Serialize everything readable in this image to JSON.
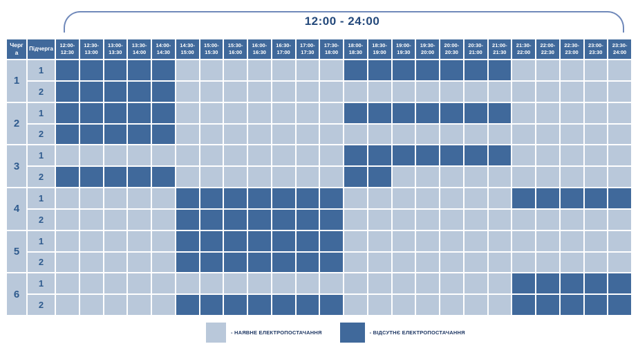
{
  "title": "12:00 - 24:00",
  "colors": {
    "power_on_cell": "#b9c8da",
    "power_off_cell": "#40699b",
    "header_bg": "#40699b",
    "header_text": "#ffffff",
    "row_label_text": "#2f5b8e",
    "title_text": "#24497b",
    "brace_line": "#7089ba",
    "legend_text": "#1f3864"
  },
  "table": {
    "queue_header": "Черга",
    "subqueue_header": "Підчерга",
    "time_slots": [
      "12:00-12:30",
      "12:30-13:00",
      "13:00-13:30",
      "13:30-14:00",
      "14:00-14:30",
      "14:30-15:00",
      "15:00-15:30",
      "15:30-16:00",
      "16:00-16:30",
      "16:30-17:00",
      "17:00-17:30",
      "17:30-18:00",
      "18:00-18:30",
      "18:30-19:00",
      "19:00-19:30",
      "19:30-20:00",
      "20:00-20:30",
      "20:30-21:00",
      "21:00-21:30",
      "21:30-22:00",
      "22:00-22:30",
      "22:30-23:00",
      "23:00-23:30",
      "23:30-24:00"
    ],
    "rows": [
      {
        "queue": "1",
        "sub": "1"
      },
      {
        "queue": "1",
        "sub": "2"
      },
      {
        "queue": "2",
        "sub": "1"
      },
      {
        "queue": "2",
        "sub": "2"
      },
      {
        "queue": "3",
        "sub": "1"
      },
      {
        "queue": "3",
        "sub": "2"
      },
      {
        "queue": "4",
        "sub": "1"
      },
      {
        "queue": "4",
        "sub": "2"
      },
      {
        "queue": "5",
        "sub": "1"
      },
      {
        "queue": "5",
        "sub": "2"
      },
      {
        "queue": "6",
        "sub": "1"
      },
      {
        "queue": "6",
        "sub": "2"
      }
    ]
  },
  "legend": {
    "items": [
      {
        "state": "on",
        "label": "- НАЯВНЕ ЕЛЕКТРОПОСТАЧАННЯ"
      },
      {
        "state": "off",
        "label": "- ВІДСУТНЄ ЕЛЕКТРОПОСТАЧАННЯ"
      }
    ]
  },
  "chart_data": {
    "type": "heatmap",
    "title": "12:00 - 24:00",
    "x_categories": [
      "12:00-12:30",
      "12:30-13:00",
      "13:00-13:30",
      "13:30-14:00",
      "14:00-14:30",
      "14:30-15:00",
      "15:00-15:30",
      "15:30-16:00",
      "16:00-16:30",
      "16:30-17:00",
      "17:00-17:30",
      "17:30-18:00",
      "18:00-18:30",
      "18:30-19:00",
      "19:00-19:30",
      "19:30-20:00",
      "20:00-20:30",
      "20:30-21:00",
      "21:00-21:30",
      "21:30-22:00",
      "22:00-22:30",
      "22:30-23:00",
      "23:00-23:30",
      "23:30-24:00"
    ],
    "y_categories": [
      "1.1",
      "1.2",
      "2.1",
      "2.2",
      "3.1",
      "3.2",
      "4.1",
      "4.2",
      "5.1",
      "5.2",
      "6.1",
      "6.2"
    ],
    "value_meaning": {
      "0": "наявне електропостачання",
      "1": "відсутнє електропостачання"
    },
    "legend_position": "bottom",
    "values": [
      [
        1,
        1,
        1,
        1,
        1,
        0,
        0,
        0,
        0,
        0,
        0,
        0,
        1,
        1,
        1,
        1,
        1,
        1,
        1,
        0,
        0,
        0,
        0,
        0
      ],
      [
        1,
        1,
        1,
        1,
        1,
        0,
        0,
        0,
        0,
        0,
        0,
        0,
        0,
        0,
        0,
        0,
        0,
        0,
        0,
        0,
        0,
        0,
        0,
        0
      ],
      [
        1,
        1,
        1,
        1,
        1,
        0,
        0,
        0,
        0,
        0,
        0,
        0,
        1,
        1,
        1,
        1,
        1,
        1,
        1,
        0,
        0,
        0,
        0,
        0
      ],
      [
        1,
        1,
        1,
        1,
        1,
        0,
        0,
        0,
        0,
        0,
        0,
        0,
        0,
        0,
        0,
        0,
        0,
        0,
        0,
        0,
        0,
        0,
        0,
        0
      ],
      [
        0,
        0,
        0,
        0,
        0,
        0,
        0,
        0,
        0,
        0,
        0,
        0,
        1,
        1,
        1,
        1,
        1,
        1,
        1,
        0,
        0,
        0,
        0,
        0
      ],
      [
        1,
        1,
        1,
        1,
        1,
        0,
        0,
        0,
        0,
        0,
        0,
        0,
        1,
        1,
        0,
        0,
        0,
        0,
        0,
        0,
        0,
        0,
        0,
        0
      ],
      [
        0,
        0,
        0,
        0,
        0,
        1,
        1,
        1,
        1,
        1,
        1,
        1,
        0,
        0,
        0,
        0,
        0,
        0,
        0,
        1,
        1,
        1,
        1,
        1
      ],
      [
        0,
        0,
        0,
        0,
        0,
        1,
        1,
        1,
        1,
        1,
        1,
        1,
        0,
        0,
        0,
        0,
        0,
        0,
        0,
        0,
        0,
        0,
        0,
        0
      ],
      [
        0,
        0,
        0,
        0,
        0,
        1,
        1,
        1,
        1,
        1,
        1,
        1,
        0,
        0,
        0,
        0,
        0,
        0,
        0,
        0,
        0,
        0,
        0,
        0
      ],
      [
        0,
        0,
        0,
        0,
        0,
        1,
        1,
        1,
        1,
        1,
        1,
        1,
        0,
        0,
        0,
        0,
        0,
        0,
        0,
        0,
        0,
        0,
        0,
        0
      ],
      [
        0,
        0,
        0,
        0,
        0,
        0,
        0,
        0,
        0,
        0,
        0,
        0,
        0,
        0,
        0,
        0,
        0,
        0,
        0,
        1,
        1,
        1,
        1,
        1
      ],
      [
        0,
        0,
        0,
        0,
        0,
        1,
        1,
        1,
        1,
        1,
        1,
        1,
        0,
        0,
        0,
        0,
        0,
        0,
        0,
        1,
        1,
        1,
        1,
        1
      ]
    ]
  }
}
